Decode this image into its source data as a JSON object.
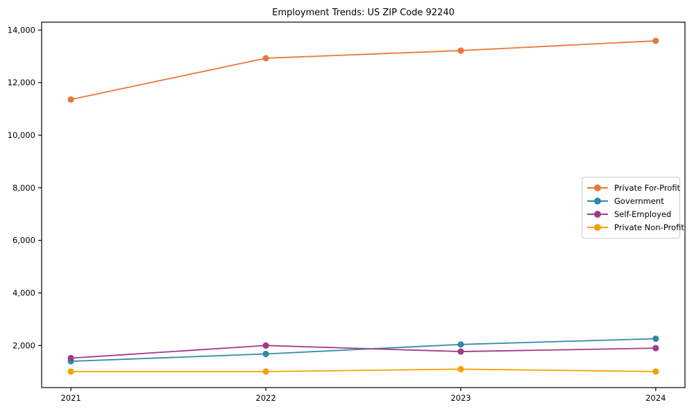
{
  "page": {
    "title": "Employment Trends: US ZIP Code 92240"
  },
  "chart_data": {
    "type": "line",
    "title": "Employment Trends: US ZIP Code 92240",
    "xlabel": "",
    "ylabel": "",
    "x": [
      2021,
      2022,
      2023,
      2024
    ],
    "x_tick_labels": [
      "2021",
      "2022",
      "2023",
      "2024"
    ],
    "y_ticks": [
      2000,
      4000,
      6000,
      8000,
      10000,
      12000,
      14000
    ],
    "y_tick_labels": [
      "2,000",
      "4,000",
      "6,000",
      "8,000",
      "10,000",
      "12,000",
      "14,000"
    ],
    "xlim": [
      2020.85,
      2024.15
    ],
    "ylim": [
      400,
      14300
    ],
    "grid": false,
    "legend_position": "center right",
    "marker": "circle",
    "axis_color": "#000000",
    "series": [
      {
        "name": "Private For-Profit",
        "color": "#e8793b",
        "values": [
          11360,
          12930,
          13220,
          13590
        ]
      },
      {
        "name": "Government",
        "color": "#2e8ba8",
        "values": [
          1400,
          1680,
          2040,
          2260
        ]
      },
      {
        "name": "Self-Employed",
        "color": "#a23a87",
        "values": [
          1520,
          2000,
          1770,
          1900
        ]
      },
      {
        "name": "Private Non-Profit",
        "color": "#f3a202",
        "values": [
          1010,
          1010,
          1100,
          1010
        ]
      }
    ]
  }
}
